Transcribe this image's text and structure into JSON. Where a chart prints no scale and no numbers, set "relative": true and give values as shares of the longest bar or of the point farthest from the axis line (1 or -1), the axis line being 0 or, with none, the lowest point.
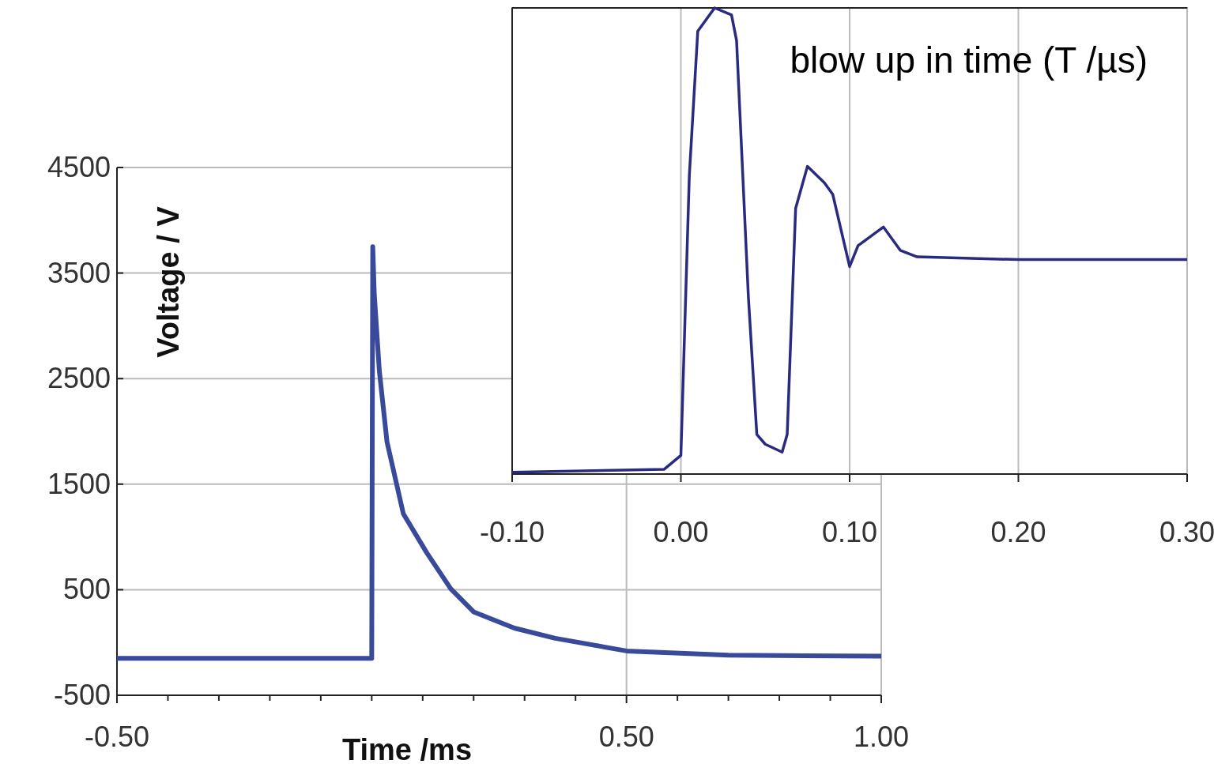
{
  "chart_data": [
    {
      "type": "line",
      "xlabel": "Time  /ms",
      "ylabel": "Voltage  / V",
      "xlim": [
        -0.5,
        1.0
      ],
      "ylim": [
        -500,
        4500
      ],
      "xticks": [
        {
          "value": -0.5,
          "label": "-0.50"
        },
        {
          "value": -0.4,
          "label": null
        },
        {
          "value": -0.3,
          "label": null
        },
        {
          "value": -0.2,
          "label": null
        },
        {
          "value": -0.1,
          "label": null
        },
        {
          "value": 0,
          "label": null
        },
        {
          "value": 0.1,
          "label": null
        },
        {
          "value": 0.2,
          "label": null
        },
        {
          "value": 0.3,
          "label": null
        },
        {
          "value": 0.4,
          "label": null
        },
        {
          "value": 0.5,
          "label": "0.50"
        },
        {
          "value": 0.6,
          "label": null
        },
        {
          "value": 0.7,
          "label": null
        },
        {
          "value": 0.8,
          "label": null
        },
        {
          "value": 0.9,
          "label": null
        },
        {
          "value": 1.0,
          "label": "1.00"
        }
      ],
      "yticks": [
        -500,
        500,
        1500,
        2500,
        3500,
        4500
      ],
      "grid": true,
      "series": [
        {
          "color": "#3a4a9a",
          "x": [
            -0.5,
            -0.25,
            0,
            0.002,
            0.005,
            0.015,
            0.03,
            0.062,
            0.108,
            0.155,
            0.2,
            0.28,
            0.36,
            0.5,
            0.7,
            1.0
          ],
          "values": [
            -150,
            -150,
            -150,
            3750,
            3300,
            2570,
            1900,
            1220,
            850,
            510,
            290,
            136,
            40,
            -80,
            -120,
            -130
          ]
        }
      ]
    },
    {
      "type": "line",
      "title": "blow up in time (T /µs)",
      "relative": true,
      "xlim": [
        -0.1,
        0.3
      ],
      "xticks": [
        {
          "value": -0.1,
          "label": "-0.10"
        },
        {
          "value": 0,
          "label": "0.00"
        },
        {
          "value": 0.1,
          "label": "0.10"
        },
        {
          "value": 0.2,
          "label": "0.20"
        },
        {
          "value": 0.3,
          "label": "0.30"
        }
      ],
      "grid": "x",
      "series": [
        {
          "color": "#2a2a80",
          "x": [
            -0.1,
            -0.01,
            0,
            0.005,
            0.01,
            0.02,
            0.03,
            0.033,
            0.04,
            0.045,
            0.05,
            0.06,
            0.063,
            0.068,
            0.075,
            0.085,
            0.09,
            0.1,
            0.105,
            0.12,
            0.13,
            0.14,
            0.2,
            0.3
          ],
          "values": [
            0.004,
            0.01,
            0.04,
            0.64,
            0.95,
            1.0,
            0.985,
            0.93,
            0.38,
            0.085,
            0.064,
            0.047,
            0.085,
            0.57,
            0.66,
            0.625,
            0.6,
            0.445,
            0.49,
            0.53,
            0.48,
            0.466,
            0.46,
            0.46
          ]
        }
      ]
    }
  ]
}
